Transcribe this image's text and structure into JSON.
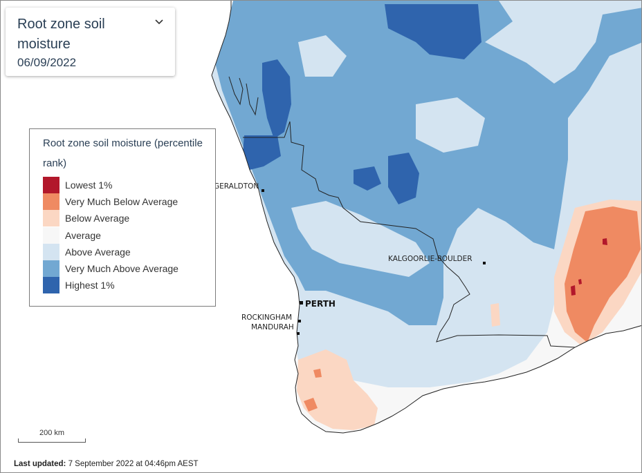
{
  "panel": {
    "title": "Root zone soil moisture",
    "date": "06/09/2022",
    "dropdown_icon": "chevron-down-icon"
  },
  "legend": {
    "title": "Root zone soil moisture (percentile rank)",
    "items": [
      {
        "label": "Lowest 1%",
        "color": "#b2182b"
      },
      {
        "label": "Very Much Below Average",
        "color": "#ef8a62"
      },
      {
        "label": "Below Average",
        "color": "#fbd7c3"
      },
      {
        "label": "Average",
        "color": "#f7f7f7"
      },
      {
        "label": "Above Average",
        "color": "#d4e4f1"
      },
      {
        "label": "Very Much Above Average",
        "color": "#72a8d2"
      },
      {
        "label": "Highest 1%",
        "color": "#2f64ad"
      }
    ]
  },
  "places": {
    "geraldton": "GERALDTON",
    "kalgoorlie": "KALGOORLIE-BOULDER",
    "perth": "PERTH",
    "rockingham": "ROCKINGHAM",
    "mandurah": "MANDURAH"
  },
  "scale": {
    "label": "200 km"
  },
  "footer": {
    "label": "Last updated:",
    "value": "7 September 2022 at 04:46pm AEST"
  }
}
